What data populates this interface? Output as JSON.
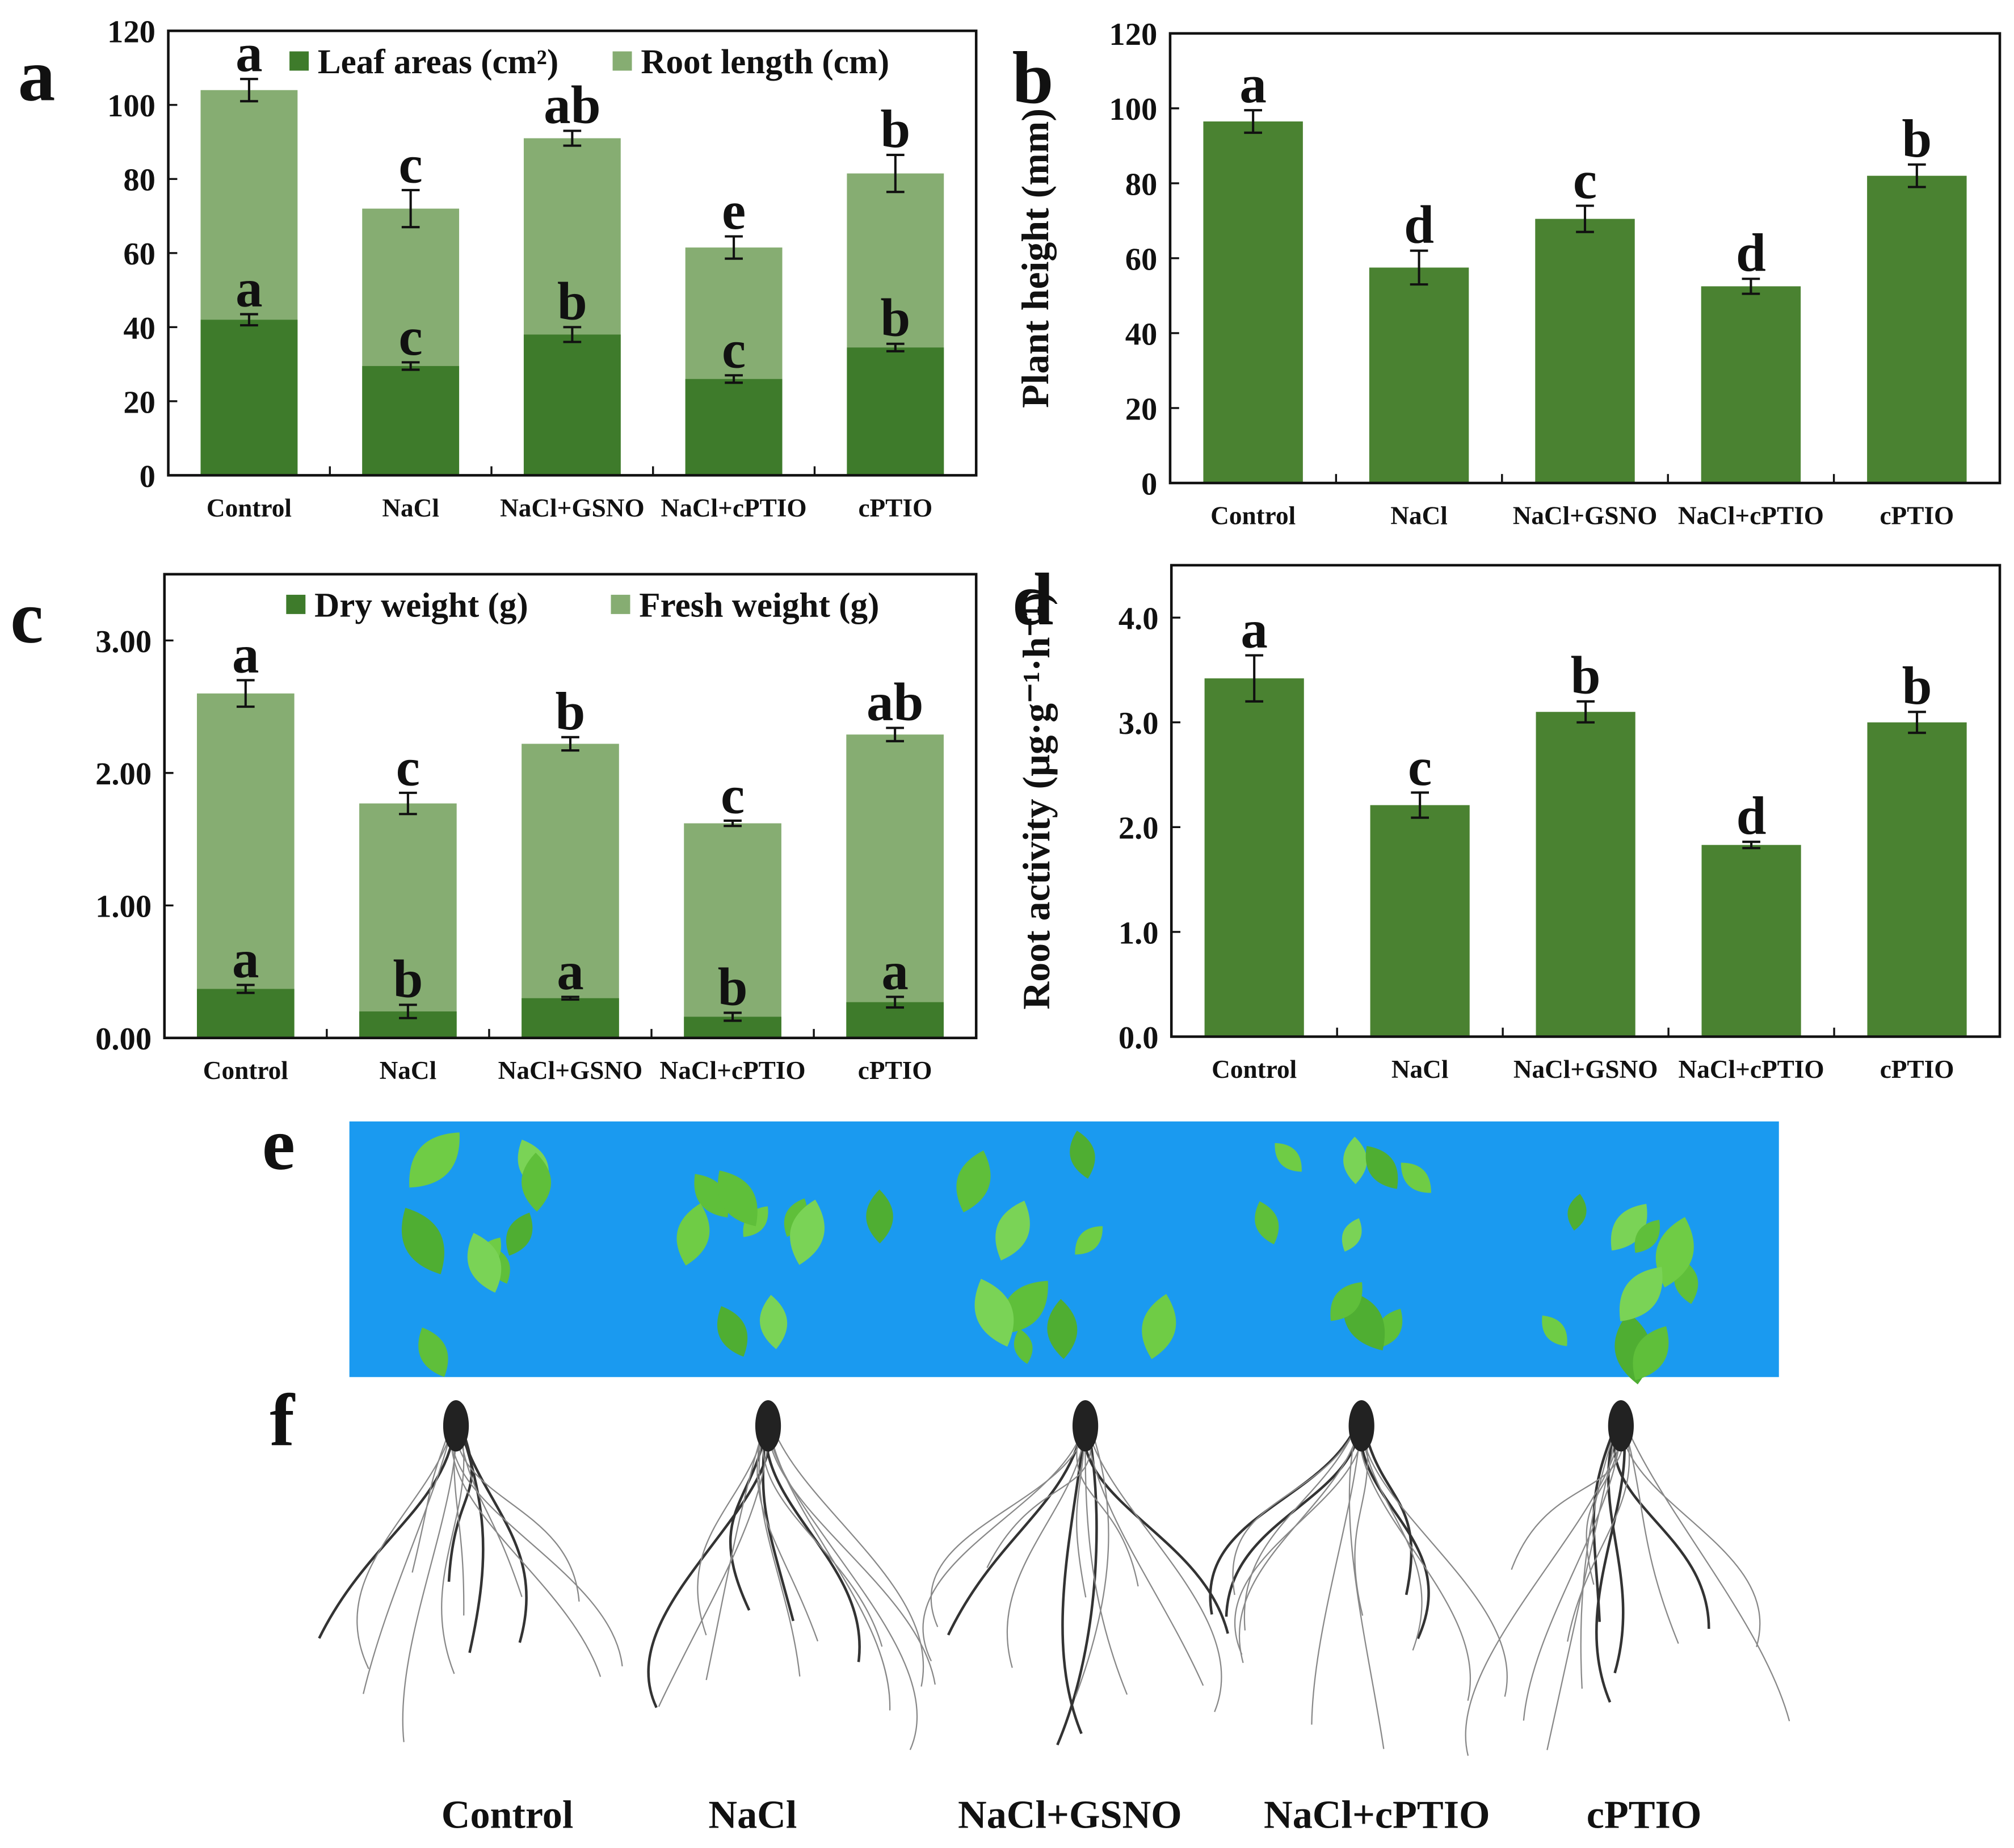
{
  "chart_data": [
    {
      "type": "bar",
      "panel": "a",
      "categories": [
        "Control",
        "NaCl",
        "NaCl+GSNO",
        "NaCl+cPTIO",
        "cPTIO"
      ],
      "ylim": [
        0,
        120
      ],
      "yticks": [
        0,
        20,
        40,
        60,
        80,
        100,
        120
      ],
      "legend": "top",
      "series": [
        {
          "name": "Root length  (cm)",
          "color": "#86ad72",
          "values": [
            104,
            72,
            91,
            61.5,
            81.5
          ],
          "errors": [
            3,
            5,
            2,
            3,
            5
          ],
          "labels": [
            "a",
            "c",
            "ab",
            "e",
            "b"
          ]
        },
        {
          "name": "Leaf areas  (cm²)",
          "color": "#3e7b2b",
          "values": [
            42,
            29.5,
            38,
            26,
            34.5
          ],
          "errors": [
            1.5,
            1,
            2,
            1,
            1
          ],
          "labels": [
            "a",
            "c",
            "b",
            "c",
            "b"
          ]
        }
      ]
    },
    {
      "type": "bar",
      "panel": "b",
      "ylabel": "Plant height (mm)",
      "categories": [
        "Control",
        "NaCl",
        "NaCl+GSNO",
        "NaCl+cPTIO",
        "cPTIO"
      ],
      "ylim": [
        0,
        120
      ],
      "yticks": [
        0,
        20,
        40,
        60,
        80,
        100,
        120
      ],
      "series": [
        {
          "color": "#4a8231",
          "values": [
            96.5,
            57.5,
            70.5,
            52.5,
            82
          ],
          "errors": [
            3,
            4.5,
            3.5,
            2,
            3
          ],
          "labels": [
            "a",
            "d",
            "c",
            "d",
            "b"
          ]
        }
      ]
    },
    {
      "type": "bar",
      "panel": "c",
      "categories": [
        "Control",
        "NaCl",
        "NaCl+GSNO",
        "NaCl+cPTIO",
        "cPTIO"
      ],
      "ylim": [
        0,
        3.5
      ],
      "yticks": [
        {
          "value": 0,
          "label": "0.00"
        },
        {
          "value": 1,
          "label": "1.00"
        },
        {
          "value": 2,
          "label": "2.00"
        },
        {
          "value": 3,
          "label": "3.00"
        }
      ],
      "legend": "top",
      "series": [
        {
          "name": "Fresh weight (g)",
          "color": "#86ad72",
          "values": [
            2.6,
            1.77,
            2.22,
            1.62,
            2.29
          ],
          "errors": [
            0.1,
            0.08,
            0.05,
            0.02,
            0.05
          ],
          "labels": [
            "a",
            "c",
            "b",
            "c",
            "ab"
          ]
        },
        {
          "name": "Dry weight (g)",
          "color": "#3e7b2b",
          "values": [
            0.37,
            0.2,
            0.3,
            0.16,
            0.27
          ],
          "errors": [
            0.03,
            0.05,
            0.01,
            0.03,
            0.04
          ],
          "labels": [
            "a",
            "b",
            "a",
            "b",
            "a"
          ]
        }
      ]
    },
    {
      "type": "bar",
      "panel": "d",
      "ylabel": "Root activity (μg·g⁻¹·h⁻¹)",
      "categories": [
        "Control",
        "NaCl",
        "NaCl+GSNO",
        "NaCl+cPTIO",
        "cPTIO"
      ],
      "ylim": [
        0,
        4.5
      ],
      "yticks": [
        {
          "value": 0,
          "label": "0.0"
        },
        {
          "value": 1,
          "label": "1.0"
        },
        {
          "value": 2,
          "label": "2.0"
        },
        {
          "value": 3,
          "label": "3.0"
        },
        {
          "value": 4,
          "label": "4.0"
        }
      ],
      "series": [
        {
          "color": "#4a8231",
          "values": [
            3.42,
            2.21,
            3.1,
            1.83,
            3.0
          ],
          "errors": [
            0.22,
            0.12,
            0.1,
            0.03,
            0.1
          ],
          "labels": [
            "a",
            "c",
            "b",
            "d",
            "b"
          ]
        }
      ]
    }
  ],
  "photos": {
    "leaf_panel": "e",
    "root_panel": "f",
    "groups": [
      "Control",
      "NaCl",
      "NaCl+GSNO",
      "NaCl+cPTIO",
      "cPTIO"
    ]
  }
}
